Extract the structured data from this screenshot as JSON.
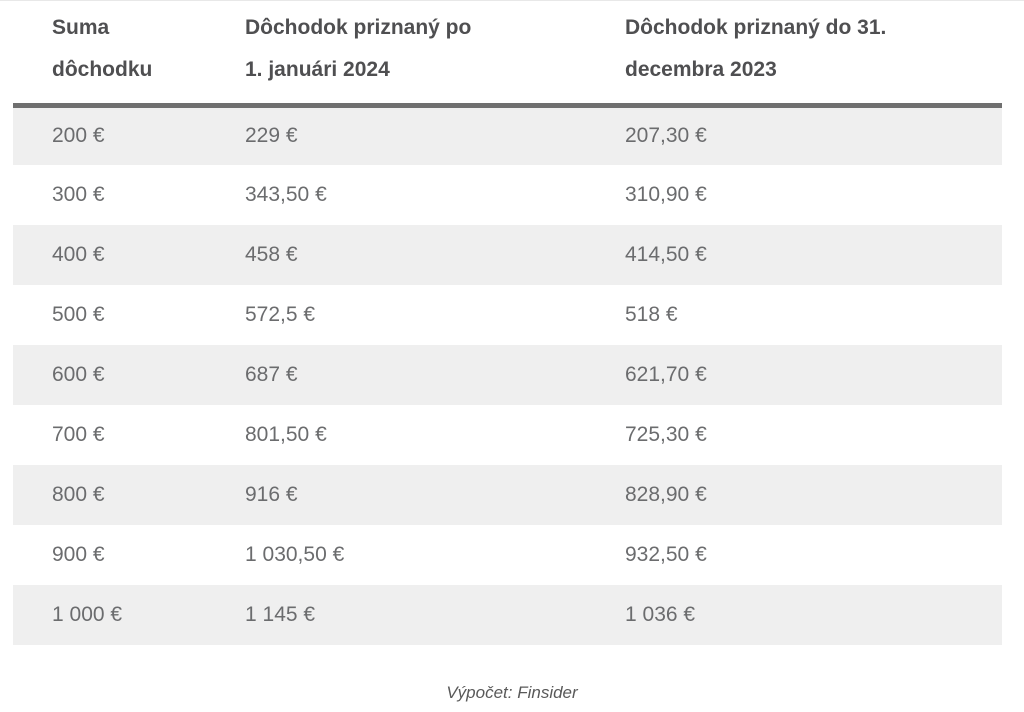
{
  "colors": {
    "header_text": "#4f4f51",
    "body_text": "#6b6c6e",
    "stripe_bg": "#efefef",
    "header_rule": "#6f6f6f",
    "caption_text": "#595959",
    "page_bg": "#ffffff"
  },
  "table": {
    "header": [
      {
        "label": "Suma\ndôchodku"
      },
      {
        "label": "Dôchodok priznaný po\n1. januári 2024"
      },
      {
        "label": "Dôchodok priznaný do 31.\ndecembra 2023"
      }
    ],
    "rows": [
      [
        "200 €",
        "229 €",
        "207,30 €"
      ],
      [
        "300 €",
        "343,50 €",
        "310,90 €"
      ],
      [
        "400 €",
        "458 €",
        "414,50 €"
      ],
      [
        "500 €",
        "572,5 €",
        "518 €"
      ],
      [
        "600 €",
        "687 €",
        "621,70 €"
      ],
      [
        "700 €",
        "801,50 €",
        "725,30 €"
      ],
      [
        "800 €",
        "916 €",
        "828,90 €"
      ],
      [
        "900 €",
        "1 030,50 €",
        "932,50 €"
      ],
      [
        "1 000 €",
        "1 145 €",
        "1 036 €"
      ]
    ]
  },
  "caption": "Výpočet: Finsider",
  "chart_data": {
    "type": "table",
    "title": "",
    "columns": [
      "Suma dôchodku",
      "Dôchodok priznaný po 1. januári 2024",
      "Dôchodok priznaný do 31. decembra 2023"
    ],
    "rows": [
      [
        "200 €",
        "229 €",
        "207,30 €"
      ],
      [
        "300 €",
        "343,50 €",
        "310,90 €"
      ],
      [
        "400 €",
        "458 €",
        "414,50 €"
      ],
      [
        "500 €",
        "572,5 €",
        "518 €"
      ],
      [
        "600 €",
        "687 €",
        "621,70 €"
      ],
      [
        "700 €",
        "801,50 €",
        "725,30 €"
      ],
      [
        "800 €",
        "916 €",
        "828,90 €"
      ],
      [
        "900 €",
        "1 030,50 €",
        "932,50 €"
      ],
      [
        "1 000 €",
        "1 145 €",
        "1 036 €"
      ]
    ],
    "caption": "Výpočet: Finsider",
    "layout": {
      "striped_rows": "odd",
      "header_rule": true,
      "grid": false
    }
  }
}
